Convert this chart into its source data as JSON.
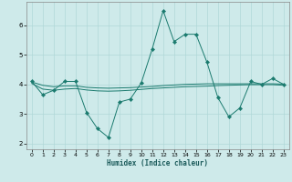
{
  "title": "",
  "xlabel": "Humidex (Indice chaleur)",
  "ylabel": "",
  "bg_color": "#ceeaea",
  "grid_color": "#b0d8d8",
  "line_color": "#1a7a6e",
  "xlim": [
    -0.5,
    23.5
  ],
  "ylim": [
    1.8,
    6.8
  ],
  "yticks": [
    2,
    3,
    4,
    5,
    6
  ],
  "xticks": [
    0,
    1,
    2,
    3,
    4,
    5,
    6,
    7,
    8,
    9,
    10,
    11,
    12,
    13,
    14,
    15,
    16,
    17,
    18,
    19,
    20,
    21,
    22,
    23
  ],
  "line1_x": [
    0,
    1,
    2,
    3,
    4,
    5,
    6,
    7,
    8,
    9,
    10,
    11,
    12,
    13,
    14,
    15,
    16,
    17,
    18,
    19,
    20,
    21,
    22,
    23
  ],
  "line1_y": [
    4.1,
    3.65,
    3.8,
    4.1,
    4.1,
    3.05,
    2.5,
    2.2,
    3.4,
    3.5,
    4.05,
    5.2,
    6.5,
    5.45,
    5.7,
    5.7,
    4.75,
    3.55,
    2.9,
    3.2,
    4.1,
    4.0,
    4.2,
    4.0
  ],
  "line2_x": [
    0,
    1,
    2,
    3,
    4,
    5,
    6,
    7,
    8,
    9,
    10,
    11,
    12,
    13,
    14,
    15,
    16,
    17,
    18,
    19,
    20,
    21,
    22,
    23
  ],
  "line2_y": [
    4.08,
    3.97,
    3.92,
    3.95,
    3.95,
    3.9,
    3.88,
    3.87,
    3.88,
    3.89,
    3.91,
    3.93,
    3.96,
    3.98,
    4.0,
    4.01,
    4.02,
    4.02,
    4.02,
    4.02,
    4.02,
    4.02,
    4.02,
    4.01
  ],
  "line3_x": [
    0,
    1,
    2,
    3,
    4,
    5,
    6,
    7,
    8,
    9,
    10,
    11,
    12,
    13,
    14,
    15,
    16,
    17,
    18,
    19,
    20,
    21,
    22,
    23
  ],
  "line3_y": [
    4.03,
    3.84,
    3.8,
    3.84,
    3.86,
    3.81,
    3.78,
    3.77,
    3.78,
    3.8,
    3.83,
    3.86,
    3.88,
    3.9,
    3.92,
    3.93,
    3.94,
    3.96,
    3.97,
    3.98,
    3.99,
    3.99,
    3.99,
    3.97
  ]
}
